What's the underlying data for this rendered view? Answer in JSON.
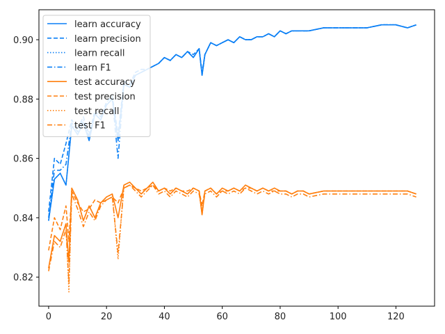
{
  "chart_data": {
    "type": "line",
    "title": "",
    "xlabel": "",
    "ylabel": "",
    "xlim": [
      -3.35,
      133.35
    ],
    "ylim": [
      0.8102,
      0.9101
    ],
    "xticks": [
      0,
      20,
      40,
      60,
      80,
      100,
      120
    ],
    "yticks": [
      0.82,
      0.84,
      0.86,
      0.88,
      0.9
    ],
    "ytick_labels": [
      "0.82",
      "0.84",
      "0.86",
      "0.88",
      "0.90"
    ],
    "grid": false,
    "legend_position": "top-left",
    "colors": {
      "learn": "#0a7ff5",
      "test": "#ff7f0e"
    },
    "series": [
      {
        "name": "learn accuracy",
        "style": "solid",
        "color": "#0a7ff5",
        "x": [
          0,
          2,
          4,
          6,
          8,
          10,
          12,
          14,
          16,
          18,
          20,
          22,
          24,
          26,
          28,
          30,
          32,
          34,
          36,
          38,
          40,
          42,
          44,
          46,
          48,
          50,
          52,
          53,
          54,
          56,
          58,
          60,
          62,
          64,
          66,
          68,
          70,
          72,
          74,
          76,
          78,
          80,
          82,
          84,
          86,
          88,
          90,
          95,
          100,
          105,
          110,
          115,
          120,
          124,
          127
        ],
        "y": [
          0.839,
          0.853,
          0.855,
          0.851,
          0.871,
          0.868,
          0.872,
          0.866,
          0.875,
          0.873,
          0.878,
          0.88,
          0.866,
          0.885,
          0.884,
          0.888,
          0.889,
          0.89,
          0.891,
          0.892,
          0.894,
          0.893,
          0.895,
          0.894,
          0.896,
          0.894,
          0.897,
          0.888,
          0.895,
          0.899,
          0.898,
          0.899,
          0.9,
          0.899,
          0.901,
          0.9,
          0.9,
          0.901,
          0.901,
          0.902,
          0.901,
          0.903,
          0.902,
          0.903,
          0.903,
          0.903,
          0.903,
          0.904,
          0.904,
          0.904,
          0.904,
          0.905,
          0.905,
          0.904,
          0.905
        ]
      },
      {
        "name": "learn precision",
        "style": "dashed",
        "color": "#0a7ff5",
        "x": [
          0,
          2,
          4,
          6,
          8,
          10,
          12,
          14,
          16,
          18,
          20,
          22,
          24,
          26,
          28,
          30,
          32,
          34,
          36,
          38,
          40,
          42,
          44,
          46,
          48,
          50,
          52,
          53,
          54,
          56,
          58,
          60,
          62,
          64,
          66,
          68,
          70,
          72,
          74,
          76,
          78,
          80,
          82,
          84,
          86,
          88,
          90,
          95,
          100,
          105,
          110,
          115,
          120,
          124,
          127
        ],
        "y": [
          0.842,
          0.86,
          0.858,
          0.865,
          0.873,
          0.87,
          0.874,
          0.868,
          0.876,
          0.874,
          0.879,
          0.881,
          0.868,
          0.886,
          0.885,
          0.889,
          0.89,
          0.89,
          0.891,
          0.892,
          0.894,
          0.893,
          0.895,
          0.894,
          0.896,
          0.895,
          0.897,
          0.889,
          0.895,
          0.899,
          0.898,
          0.899,
          0.9,
          0.899,
          0.901,
          0.9,
          0.9,
          0.901,
          0.901,
          0.902,
          0.901,
          0.903,
          0.902,
          0.903,
          0.903,
          0.903,
          0.903,
          0.904,
          0.904,
          0.904,
          0.904,
          0.905,
          0.905,
          0.904,
          0.905
        ]
      },
      {
        "name": "learn recall",
        "style": "dotted",
        "color": "#0a7ff5",
        "x": [
          0,
          2,
          4,
          6,
          8,
          10,
          12,
          14,
          16,
          18,
          20,
          22,
          24,
          26,
          28,
          30,
          32,
          34,
          36,
          38,
          40,
          42,
          44,
          46,
          48,
          50,
          52,
          53,
          54,
          56,
          58,
          60,
          62,
          64,
          66,
          68,
          70,
          72,
          74,
          76,
          78,
          80,
          82,
          84,
          86,
          88,
          90,
          95,
          100,
          105,
          110,
          115,
          120,
          124,
          127
        ],
        "y": [
          0.839,
          0.853,
          0.855,
          0.851,
          0.871,
          0.868,
          0.872,
          0.866,
          0.875,
          0.873,
          0.878,
          0.88,
          0.866,
          0.885,
          0.884,
          0.888,
          0.889,
          0.89,
          0.891,
          0.892,
          0.894,
          0.893,
          0.895,
          0.894,
          0.896,
          0.894,
          0.897,
          0.888,
          0.895,
          0.899,
          0.898,
          0.899,
          0.9,
          0.899,
          0.901,
          0.9,
          0.9,
          0.901,
          0.901,
          0.902,
          0.901,
          0.903,
          0.902,
          0.903,
          0.903,
          0.903,
          0.903,
          0.904,
          0.904,
          0.904,
          0.904,
          0.905,
          0.905,
          0.904,
          0.905
        ]
      },
      {
        "name": "learn F1",
        "style": "dashdot",
        "color": "#0a7ff5",
        "x": [
          0,
          2,
          4,
          6,
          8,
          10,
          12,
          14,
          16,
          18,
          20,
          22,
          24,
          26,
          28,
          30,
          32,
          34,
          36,
          38,
          40,
          42,
          44,
          46,
          48,
          50,
          52,
          53,
          54,
          56,
          58,
          60,
          62,
          64,
          66,
          68,
          70,
          72,
          74,
          76,
          78,
          80,
          82,
          84,
          86,
          88,
          90,
          95,
          100,
          105,
          110,
          115,
          120,
          124,
          127
        ],
        "y": [
          0.84,
          0.856,
          0.856,
          0.858,
          0.872,
          0.869,
          0.873,
          0.867,
          0.875,
          0.873,
          0.878,
          0.88,
          0.86,
          0.885,
          0.884,
          0.888,
          0.889,
          0.89,
          0.891,
          0.892,
          0.894,
          0.893,
          0.895,
          0.894,
          0.896,
          0.894,
          0.897,
          0.888,
          0.895,
          0.899,
          0.898,
          0.899,
          0.9,
          0.899,
          0.901,
          0.9,
          0.9,
          0.901,
          0.901,
          0.902,
          0.901,
          0.903,
          0.902,
          0.903,
          0.903,
          0.903,
          0.903,
          0.904,
          0.904,
          0.904,
          0.904,
          0.905,
          0.905,
          0.904,
          0.905
        ]
      },
      {
        "name": "test accuracy",
        "style": "solid",
        "color": "#ff7f0e",
        "x": [
          0,
          2,
          4,
          6,
          7,
          8,
          10,
          12,
          14,
          16,
          18,
          20,
          22,
          24,
          26,
          28,
          30,
          32,
          34,
          36,
          38,
          40,
          42,
          44,
          46,
          48,
          50,
          52,
          53,
          54,
          56,
          58,
          60,
          62,
          64,
          66,
          68,
          70,
          72,
          74,
          76,
          78,
          80,
          82,
          84,
          86,
          88,
          90,
          95,
          100,
          105,
          110,
          115,
          120,
          124,
          127
        ],
        "y": [
          0.823,
          0.834,
          0.832,
          0.838,
          0.825,
          0.85,
          0.846,
          0.839,
          0.844,
          0.84,
          0.845,
          0.847,
          0.848,
          0.84,
          0.851,
          0.852,
          0.85,
          0.848,
          0.85,
          0.852,
          0.849,
          0.85,
          0.848,
          0.85,
          0.849,
          0.848,
          0.85,
          0.849,
          0.841,
          0.849,
          0.85,
          0.848,
          0.85,
          0.849,
          0.85,
          0.849,
          0.851,
          0.85,
          0.849,
          0.85,
          0.849,
          0.85,
          0.849,
          0.849,
          0.848,
          0.849,
          0.849,
          0.848,
          0.849,
          0.849,
          0.849,
          0.849,
          0.849,
          0.849,
          0.849,
          0.848
        ]
      },
      {
        "name": "test precision",
        "style": "dashed",
        "color": "#ff7f0e",
        "x": [
          0,
          2,
          4,
          6,
          7,
          8,
          10,
          12,
          14,
          16,
          18,
          20,
          22,
          24,
          26,
          28,
          30,
          32,
          34,
          36,
          38,
          40,
          42,
          44,
          46,
          48,
          50,
          52,
          53,
          54,
          56,
          58,
          60,
          62,
          64,
          66,
          68,
          70,
          72,
          74,
          76,
          78,
          80,
          82,
          84,
          86,
          88,
          90,
          95,
          100,
          105,
          110,
          115,
          120,
          124,
          127
        ],
        "y": [
          0.829,
          0.84,
          0.836,
          0.844,
          0.832,
          0.849,
          0.845,
          0.842,
          0.843,
          0.846,
          0.845,
          0.846,
          0.847,
          0.845,
          0.85,
          0.851,
          0.85,
          0.849,
          0.85,
          0.851,
          0.849,
          0.85,
          0.849,
          0.85,
          0.849,
          0.849,
          0.85,
          0.849,
          0.844,
          0.849,
          0.85,
          0.848,
          0.849,
          0.849,
          0.85,
          0.849,
          0.85,
          0.85,
          0.849,
          0.85,
          0.849,
          0.849,
          0.849,
          0.849,
          0.848,
          0.849,
          0.849,
          0.848,
          0.849,
          0.849,
          0.849,
          0.849,
          0.849,
          0.849,
          0.849,
          0.848
        ]
      },
      {
        "name": "test recall",
        "style": "dotted",
        "color": "#ff7f0e",
        "x": [
          0,
          2,
          4,
          6,
          7,
          8,
          10,
          12,
          14,
          16,
          18,
          20,
          22,
          24,
          26,
          28,
          30,
          32,
          34,
          36,
          38,
          40,
          42,
          44,
          46,
          48,
          50,
          52,
          53,
          54,
          56,
          58,
          60,
          62,
          64,
          66,
          68,
          70,
          72,
          74,
          76,
          78,
          80,
          82,
          84,
          86,
          88,
          90,
          95,
          100,
          105,
          110,
          115,
          120,
          124,
          127
        ],
        "y": [
          0.823,
          0.834,
          0.832,
          0.838,
          0.815,
          0.85,
          0.846,
          0.839,
          0.844,
          0.84,
          0.845,
          0.847,
          0.848,
          0.826,
          0.851,
          0.852,
          0.85,
          0.848,
          0.85,
          0.852,
          0.849,
          0.85,
          0.848,
          0.85,
          0.849,
          0.848,
          0.85,
          0.849,
          0.841,
          0.849,
          0.85,
          0.848,
          0.85,
          0.849,
          0.85,
          0.849,
          0.851,
          0.85,
          0.849,
          0.85,
          0.849,
          0.85,
          0.849,
          0.849,
          0.848,
          0.849,
          0.849,
          0.848,
          0.849,
          0.849,
          0.849,
          0.849,
          0.849,
          0.849,
          0.849,
          0.848
        ]
      },
      {
        "name": "test F1",
        "style": "dashdot",
        "color": "#ff7f0e",
        "x": [
          0,
          2,
          4,
          6,
          7,
          8,
          10,
          12,
          14,
          16,
          18,
          20,
          22,
          24,
          26,
          28,
          30,
          32,
          34,
          36,
          38,
          40,
          42,
          44,
          46,
          48,
          50,
          52,
          53,
          54,
          56,
          58,
          60,
          62,
          64,
          66,
          68,
          70,
          72,
          74,
          76,
          78,
          80,
          82,
          84,
          86,
          88,
          90,
          95,
          100,
          105,
          110,
          115,
          120,
          124,
          127
        ],
        "y": [
          0.822,
          0.832,
          0.83,
          0.836,
          0.818,
          0.848,
          0.843,
          0.837,
          0.842,
          0.839,
          0.844,
          0.846,
          0.847,
          0.828,
          0.85,
          0.851,
          0.849,
          0.847,
          0.849,
          0.851,
          0.848,
          0.849,
          0.847,
          0.849,
          0.848,
          0.847,
          0.849,
          0.848,
          0.842,
          0.848,
          0.849,
          0.847,
          0.849,
          0.848,
          0.849,
          0.848,
          0.85,
          0.849,
          0.848,
          0.849,
          0.848,
          0.849,
          0.848,
          0.848,
          0.847,
          0.848,
          0.848,
          0.847,
          0.848,
          0.848,
          0.848,
          0.848,
          0.848,
          0.848,
          0.848,
          0.847
        ]
      }
    ]
  }
}
